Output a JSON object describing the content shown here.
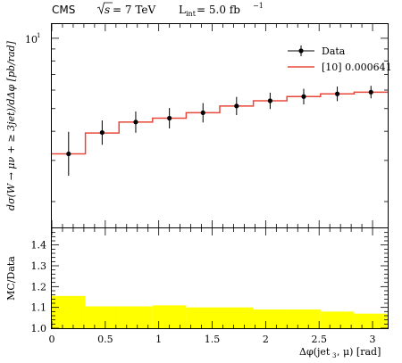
{
  "header": {
    "experiment": "CMS",
    "energy_sym": "s",
    "energy_val": " = 7 TeV",
    "lumi_main": "L",
    "lumi_sub": "int",
    "lumi_val": " = 5.0 fb",
    "lumi_sup": "−1"
  },
  "chart_data": [
    {
      "type": "line",
      "panel": "main",
      "ylabel": "dσ(W → μν + ≥ 3jet)/dΔφ [pb/rad]",
      "yscale": "log",
      "ylim": [
        1.55,
        11.5
      ],
      "xlim": [
        0,
        3.1416
      ],
      "ytick_label": {
        "value": 10,
        "base": "10",
        "exp": "1"
      },
      "legend": {
        "position": "top-right",
        "entries": [
          {
            "label": "Data",
            "style": "points-with-errors",
            "color": "#000000"
          },
          {
            "label": "[10] 0.000641",
            "style": "line",
            "color": "#e8483a"
          }
        ]
      },
      "bin_edges": [
        0,
        0.314159,
        0.628319,
        0.942478,
        1.256637,
        1.570796,
        1.884956,
        2.199115,
        2.513274,
        2.827433,
        3.141593
      ],
      "series": [
        {
          "name": "Data",
          "x": [
            0.157,
            0.471,
            0.785,
            1.1,
            1.414,
            1.728,
            2.042,
            2.356,
            2.67,
            2.985
          ],
          "values": [
            3.2,
            3.95,
            4.38,
            4.55,
            4.8,
            5.13,
            5.4,
            5.63,
            5.78,
            5.88
          ],
          "err_up": [
            0.78,
            0.5,
            0.48,
            0.48,
            0.48,
            0.48,
            0.45,
            0.45,
            0.43,
            0.38
          ],
          "err_down": [
            0.62,
            0.45,
            0.44,
            0.44,
            0.44,
            0.44,
            0.42,
            0.42,
            0.4,
            0.35
          ]
        },
        {
          "name": "[10] 0.000641",
          "values": [
            3.2,
            3.93,
            4.38,
            4.55,
            4.8,
            5.13,
            5.4,
            5.63,
            5.78,
            5.88
          ]
        }
      ]
    },
    {
      "type": "area",
      "panel": "ratio",
      "ylabel": "MC/Data",
      "xlabel": "Δφ(jet",
      "xlabel_sub": "3",
      "xlabel_end": ", μ) [rad]",
      "xlim": [
        0,
        3.1416
      ],
      "ylim": [
        1.0,
        1.48
      ],
      "yticks": [
        1.0,
        1.1,
        1.2,
        1.3,
        1.4
      ],
      "ytick_labels": [
        "1.0",
        "1.1",
        "1.2",
        "1.3",
        "1.4"
      ],
      "xticks": [
        0,
        0.5,
        1,
        1.5,
        2,
        2.5,
        3
      ],
      "xtick_labels": [
        "0",
        "0.5",
        "1",
        "1.5",
        "2",
        "2.5",
        "3"
      ],
      "band_color": "#ffff00",
      "bin_edges": [
        0,
        0.314159,
        0.628319,
        0.942478,
        1.256637,
        1.570796,
        1.884956,
        2.199115,
        2.513274,
        2.827433,
        3.141593
      ],
      "band_low": [
        1.0,
        1.0,
        1.0,
        1.0,
        1.0,
        1.0,
        1.0,
        1.0,
        1.0,
        1.0
      ],
      "band_high": [
        1.155,
        1.105,
        1.105,
        1.11,
        1.1,
        1.1,
        1.09,
        1.09,
        1.08,
        1.07
      ]
    }
  ]
}
